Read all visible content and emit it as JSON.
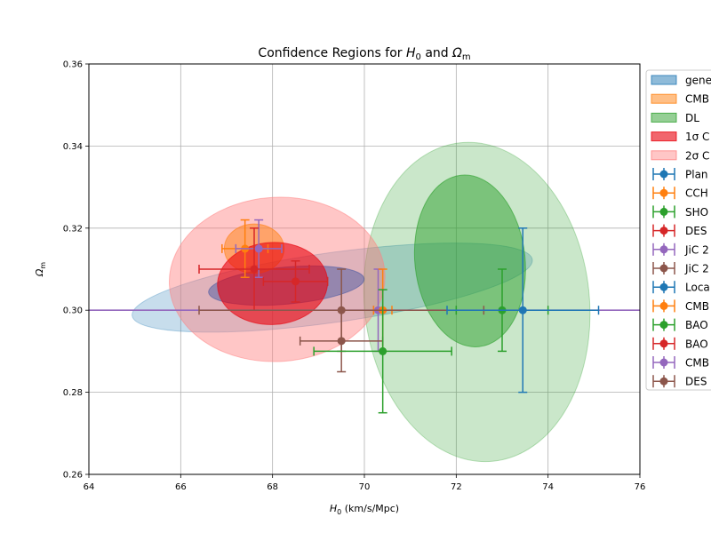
{
  "chart_data": {
    "type": "scatter",
    "title": "Confidence Regions for H0 and Ωm",
    "title_parts": [
      "Confidence Regions for ",
      "H",
      "0",
      " and ",
      "Ω",
      "m"
    ],
    "xlabel": "H0 (km/s/Mpc)",
    "xlabel_parts": [
      "H",
      "0",
      " (km/s/Mpc)"
    ],
    "ylabel": "Ωm",
    "ylabel_parts": [
      "Ω",
      "m"
    ],
    "xlim": [
      64,
      76
    ],
    "ylim": [
      0.26,
      0.36
    ],
    "xticks": [
      64,
      66,
      68,
      70,
      72,
      74,
      76
    ],
    "yticks": [
      0.26,
      0.28,
      0.3,
      0.32,
      0.34,
      0.36
    ],
    "xtick_labels": [
      "64",
      "66",
      "68",
      "70",
      "72",
      "74",
      "76"
    ],
    "ytick_labels": [
      "0.26",
      "0.28",
      "0.30",
      "0.32",
      "0.34",
      "0.36"
    ],
    "grid": true,
    "legend_placement": "right, outside, clipped",
    "reference_line": {
      "y": 0.3,
      "color": "#9467bd"
    },
    "ellipses": [
      {
        "legend": "gene",
        "cx": 69.3,
        "cy": 0.3055,
        "rx": 4.4,
        "ry": 0.0085,
        "angle": 8,
        "color": "#1f77b4",
        "fill_opacity": 0.25,
        "stroke_opacity": 0.3
      },
      {
        "legend": "CMB",
        "cx": 67.6,
        "cy": 0.315,
        "rx": 0.65,
        "ry": 0.006,
        "angle": 0,
        "color": "#ff7f0e",
        "fill_opacity": 0.5,
        "stroke_opacity": 0.6
      },
      {
        "legend": "DL",
        "cx": 72.45,
        "cy": 0.302,
        "rx": 2.45,
        "ry": 0.039,
        "angle": 6,
        "color": "#2ca02c",
        "fill_opacity": 0.25,
        "stroke_opacity": 0.3
      },
      {
        "legend": "DL",
        "cx": 72.3,
        "cy": 0.312,
        "rx": 1.2,
        "ry": 0.021,
        "angle": 6,
        "color": "#2ca02c",
        "fill_opacity": 0.5,
        "stroke_opacity": 0.6
      },
      {
        "legend": "1σ C",
        "cx": 68.0,
        "cy": 0.3065,
        "rx": 1.2,
        "ry": 0.01,
        "angle": 3,
        "color": "#e8000b",
        "fill_opacity": 0.6,
        "stroke_opacity": 0.6
      },
      {
        "legend": "2σ C",
        "cx": 68.1,
        "cy": 0.3075,
        "rx": 2.35,
        "ry": 0.02,
        "angle": 3,
        "color": "#ff8080",
        "fill_opacity": 0.45,
        "stroke_opacity": 0.5
      },
      {
        "legend": "gene",
        "cx": 68.3,
        "cy": 0.306,
        "rx": 1.7,
        "ry": 0.0045,
        "angle": 5,
        "color": "#3a4fa0",
        "fill_opacity": 0.45,
        "stroke_opacity": 0.5
      }
    ],
    "ellipse_draw_order": [
      0,
      2,
      3,
      5,
      6,
      1,
      4
    ],
    "points": [
      {
        "label": "Plan",
        "x": 67.4,
        "y": 0.315,
        "xerr": 0.5,
        "yerr": 0.007,
        "color": "#ff7f0e"
      },
      {
        "label": "CCH",
        "x": 67.7,
        "y": 0.315,
        "xerr": 0.5,
        "yerr": 0.007,
        "color": "#9467bd"
      },
      {
        "label": "DES",
        "x": 67.6,
        "y": 0.31,
        "xerr": 1.2,
        "yerr": 0.01,
        "color": "#d62728"
      },
      {
        "label": "SHO",
        "x": 68.5,
        "y": 0.307,
        "xerr": 0.7,
        "yerr": 0.005,
        "color": "#d62728"
      },
      {
        "label": "JiC 2",
        "x": 70.3,
        "y": 0.3,
        "xerr": 0.1,
        "yerr": 0.01,
        "color": "#9467bd"
      },
      {
        "label": "CMB",
        "x": 70.4,
        "y": 0.3,
        "xerr": 0.2,
        "yerr": 0.01,
        "color": "#ff7f0e"
      },
      {
        "label": "JiC 2",
        "x": 69.5,
        "y": 0.3,
        "xerr": 3.1,
        "yerr": 0.01,
        "color": "#8c564b"
      },
      {
        "label": "DES",
        "x": 69.5,
        "y": 0.2925,
        "xerr": 0.9,
        "yerr": 0.0075,
        "color": "#8c564b"
      },
      {
        "label": "BAO",
        "x": 70.4,
        "y": 0.29,
        "xerr": 1.5,
        "yerr": 0.015,
        "color": "#2ca02c"
      },
      {
        "label": "BAO",
        "x": 73.0,
        "y": 0.3,
        "xerr": 1.0,
        "yerr": 0.01,
        "color": "#2ca02c"
      },
      {
        "label": "Loca",
        "x": 73.45,
        "y": 0.3,
        "xerr": 1.65,
        "yerr": 0.02,
        "color": "#1f77b4"
      }
    ],
    "legend": [
      {
        "kind": "patch",
        "label": "gene",
        "color": "#1f77b4",
        "opacity": 0.5
      },
      {
        "kind": "patch",
        "label": "CMB",
        "color": "#ff7f0e",
        "opacity": 0.5
      },
      {
        "kind": "patch",
        "label": "DL",
        "color": "#2ca02c",
        "opacity": 0.5
      },
      {
        "kind": "patch",
        "label": "1σ C",
        "color": "#e8000b",
        "opacity": 0.6
      },
      {
        "kind": "patch",
        "label": "2σ C",
        "color": "#ff8080",
        "opacity": 0.45
      },
      {
        "kind": "marker",
        "label": "Plan",
        "color": "#1f77b4"
      },
      {
        "kind": "marker",
        "label": "CCH",
        "color": "#ff7f0e"
      },
      {
        "kind": "marker",
        "label": "SHO",
        "color": "#2ca02c"
      },
      {
        "kind": "marker",
        "label": "DES",
        "color": "#d62728"
      },
      {
        "kind": "marker",
        "label": "JiC 2",
        "color": "#9467bd"
      },
      {
        "kind": "marker",
        "label": "JiC 2",
        "color": "#8c564b"
      },
      {
        "kind": "marker",
        "label": "Loca",
        "color": "#1f77b4"
      },
      {
        "kind": "marker",
        "label": "CMB",
        "color": "#ff7f0e"
      },
      {
        "kind": "marker",
        "label": "BAO",
        "color": "#2ca02c"
      },
      {
        "kind": "marker",
        "label": "BAO",
        "color": "#d62728"
      },
      {
        "kind": "marker",
        "label": "CMB",
        "color": "#9467bd"
      },
      {
        "kind": "marker",
        "label": "DES",
        "color": "#8c564b"
      }
    ]
  }
}
